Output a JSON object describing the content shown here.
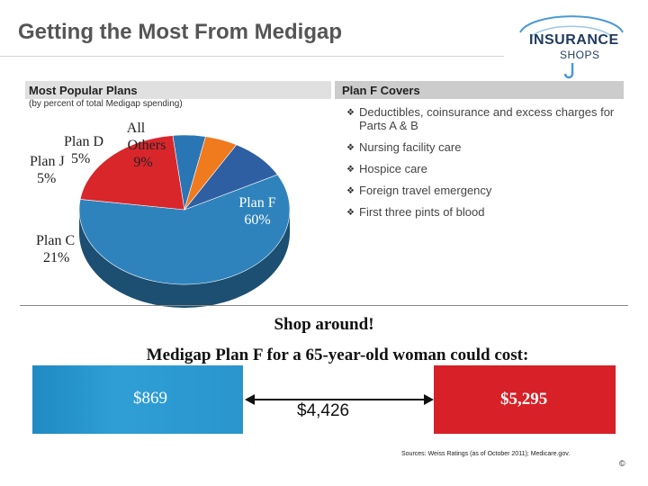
{
  "title": "Getting the Most From Medigap",
  "logo": {
    "line1": "INSURANCE",
    "line2": "SHOPS"
  },
  "left_header": "Most Popular Plans",
  "left_note": "(by percent of total Medigap spending)",
  "right_header": "Plan F Covers",
  "coverage": [
    "Deductibles, coinsurance and excess charges for Parts A & B",
    "Nursing facility care",
    "Hospice care",
    "Foreign travel emergency",
    "First three pints of blood"
  ],
  "chart_data": {
    "type": "pie",
    "title": "",
    "categories": [
      "Plan F",
      "Plan C",
      "Plan J",
      "Plan D",
      "All Others"
    ],
    "values": [
      60,
      21,
      5,
      5,
      9
    ],
    "labels": [
      {
        "name": "Plan F",
        "value": "60%"
      },
      {
        "name": "Plan C",
        "value": "21%"
      },
      {
        "name": "Plan J",
        "value": "5%"
      },
      {
        "name": "Plan D",
        "value": "5%"
      },
      {
        "name": "All Others",
        "value": "9%"
      }
    ],
    "colors": [
      "#2f83bd",
      "#d9262b",
      "#2a76b5",
      "#f07a1e",
      "#2e5fa2"
    ],
    "style": "3d"
  },
  "shop_line": "Shop around!",
  "cost_line": "Medigap Plan F for a 65-year-old woman could cost:",
  "cost_low": "$869",
  "cost_avg": "$4,426",
  "cost_high": "$5,295",
  "sources": "Sources: Weiss Ratings (as of October 2011); Medicare.gov.",
  "copyright": "©"
}
